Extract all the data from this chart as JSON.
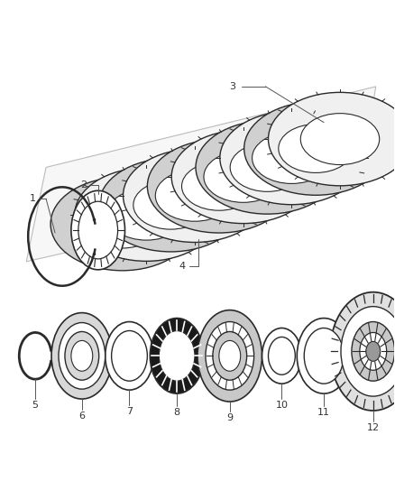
{
  "bg_color": "#ffffff",
  "lc": "#2a2a2a",
  "gc": "#888888",
  "dark_fill": "#1a1a1a",
  "mid_fill": "#aaaaaa",
  "light_fill": "#e8e8e8",
  "white": "#ffffff",
  "label_color": "#333333",
  "leader_color": "#555555"
}
